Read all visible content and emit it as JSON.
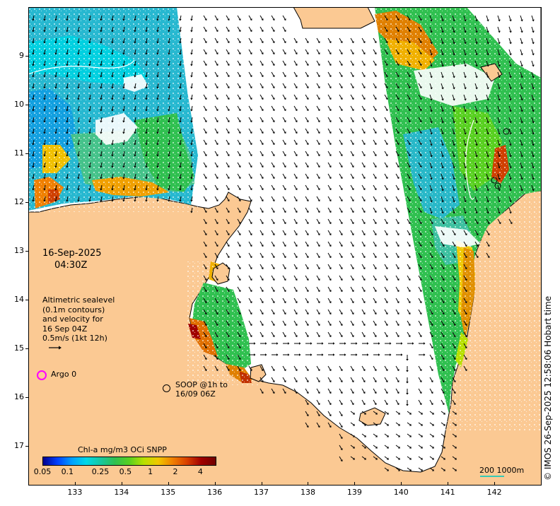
{
  "map": {
    "lon_range": [
      132,
      143
    ],
    "lat_range": [
      -17.8,
      -8.0
    ],
    "x_ticks": [
      "133",
      "134",
      "135",
      "136",
      "137",
      "138",
      "139",
      "140",
      "141",
      "142"
    ],
    "y_ticks": [
      "9",
      "10",
      "11",
      "12",
      "13",
      "14",
      "15",
      "16",
      "17"
    ],
    "colors": {
      "land": "#fbc993",
      "ocean_no_data": "#ffffff",
      "coast": "#000000",
      "arrows": "#000000"
    }
  },
  "annotations": {
    "date": "16-Sep-2025",
    "time": "04:30Z",
    "altimetry_lines": [
      "Altimetric sealevel",
      "(0.1m contours)",
      "and velocity for",
      "16 Sep 04Z",
      "0.5m/s (1kt 12h)"
    ],
    "argo_label": "Argo 0",
    "argo_color": "#ff00ff",
    "soop_lines": [
      "SOOP @1h to",
      "16/09 06Z"
    ]
  },
  "colorbar": {
    "title": "Chl-a mg/m3 OCi SNPP",
    "scale": "log",
    "range": [
      0.05,
      6
    ],
    "tick_labels": [
      "0.05",
      "0.1",
      "0.25",
      "0.5",
      "1",
      "2",
      "4"
    ],
    "tick_values": [
      0.05,
      0.1,
      0.25,
      0.5,
      1,
      2,
      4
    ],
    "colors": [
      "#00008f",
      "#0040ff",
      "#00a0ff",
      "#00d8e8",
      "#18c8a0",
      "#30c050",
      "#58d020",
      "#b8e000",
      "#f0c800",
      "#f08000",
      "#d84000",
      "#a00000",
      "#700000"
    ]
  },
  "scale_bar": {
    "label": "200  1000m",
    "color": "#36c9b5"
  },
  "credit": "© IMOS 26-Sep-2025 12:58:06 Hobart time"
}
